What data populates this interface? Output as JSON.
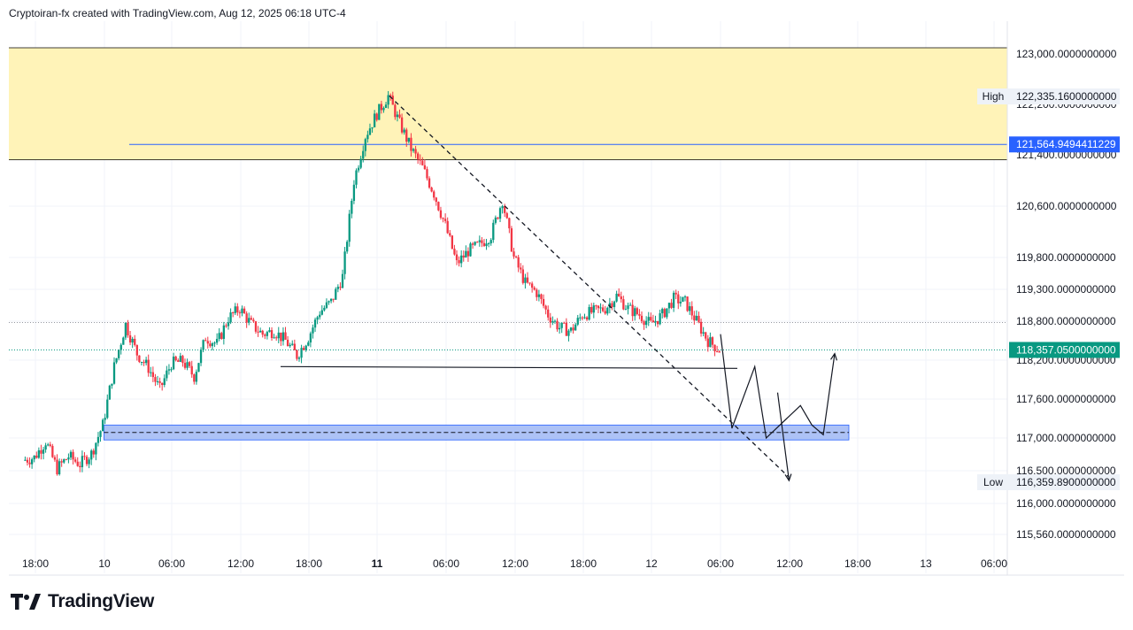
{
  "header": {
    "attribution": "Cryptoiran-fx created with TradingView.com, Aug 12, 2025 06:18 UTC-4"
  },
  "footer": {
    "logo_text": "TradingView"
  },
  "colors": {
    "up": "#089981",
    "down": "#f23645",
    "zone_yellow": "#fff3b8",
    "zone_blue": "#9fb7f5",
    "level_line": "#2962ff",
    "current_price": "#089981",
    "grid": "#f0f3fa"
  },
  "chart_data": {
    "type": "candlestick",
    "y_axis_ticks": [
      "123,000.0000000000",
      "122,200.0000000000",
      "121,400.0000000000",
      "120,600.0000000000",
      "119,800.0000000000",
      "119,300.0000000000",
      "118,800.0000000000",
      "118,200.0000000000",
      "117,600.0000000000",
      "117,000.0000000000",
      "116,500.0000000000",
      "116,000.0000000000",
      "115,560.0000000000"
    ],
    "x_axis_ticks": [
      {
        "label": "18:00",
        "bold": false
      },
      {
        "label": "10",
        "bold": false
      },
      {
        "label": "06:00",
        "bold": false
      },
      {
        "label": "12:00",
        "bold": false
      },
      {
        "label": "18:00",
        "bold": false
      },
      {
        "label": "11",
        "bold": true
      },
      {
        "label": "06:00",
        "bold": false
      },
      {
        "label": "12:00",
        "bold": false
      },
      {
        "label": "18:00",
        "bold": false
      },
      {
        "label": "12",
        "bold": false
      },
      {
        "label": "06:00",
        "bold": false
      },
      {
        "label": "12:00",
        "bold": false
      },
      {
        "label": "18:00",
        "bold": false
      },
      {
        "label": "13",
        "bold": false
      },
      {
        "label": "06:00",
        "bold": false
      }
    ],
    "price_tags": {
      "high": {
        "label": "High",
        "value": "122,335.1600000000"
      },
      "level": {
        "value": "121,564.9494411229"
      },
      "current": {
        "value": "118,357.0500000000"
      },
      "low": {
        "label": "Low",
        "value": "116,359.8900000000"
      }
    },
    "levels": {
      "high": 122335.16,
      "level": 121564.9494,
      "current": 118357.05,
      "low": 116359.89,
      "support": 118100,
      "zone_top": [
        123000,
        121350
      ],
      "zone_bottom": [
        117200,
        116970
      ],
      "dotted_top": 118780
    },
    "price_path": [
      [
        2025080917,
        116660
      ],
      [
        2025080918,
        116700
      ],
      [
        2025080919,
        116950
      ],
      [
        2025080920,
        116530
      ],
      [
        2025080921,
        116720
      ],
      [
        2025080922,
        116600
      ],
      [
        2025080923,
        116760
      ],
      [
        2025081000,
        117200
      ],
      [
        2025081001,
        118100
      ],
      [
        2025081002,
        118750
      ],
      [
        2025081003,
        118300
      ],
      [
        2025081004,
        118080
      ],
      [
        2025081005,
        117750
      ],
      [
        2025081006,
        118150
      ],
      [
        2025081007,
        118180
      ],
      [
        2025081008,
        117950
      ],
      [
        2025081009,
        118550
      ],
      [
        2025081010,
        118450
      ],
      [
        2025081011,
        118850
      ],
      [
        2025081012,
        119000
      ],
      [
        2025081013,
        118750
      ],
      [
        2025081014,
        118600
      ],
      [
        2025081015,
        118650
      ],
      [
        2025081016,
        118500
      ],
      [
        2025081017,
        118270
      ],
      [
        2025081018,
        118550
      ],
      [
        2025081019,
        118950
      ],
      [
        2025081020,
        119100
      ],
      [
        2025081021,
        119500
      ],
      [
        2025081022,
        121000
      ],
      [
        2025081023,
        121700
      ],
      [
        2025081100,
        122050
      ],
      [
        2025081101,
        122335
      ],
      [
        2025081102,
        121900
      ],
      [
        2025081103,
        121500
      ],
      [
        2025081104,
        121200
      ],
      [
        2025081105,
        120800
      ],
      [
        2025081106,
        120300
      ],
      [
        2025081107,
        119700
      ],
      [
        2025081108,
        119900
      ],
      [
        2025081109,
        120000
      ],
      [
        2025081110,
        120150
      ],
      [
        2025081111,
        120700
      ],
      [
        2025081112,
        119800
      ],
      [
        2025081113,
        119400
      ],
      [
        2025081114,
        119250
      ],
      [
        2025081115,
        118900
      ],
      [
        2025081116,
        118700
      ],
      [
        2025081117,
        118650
      ],
      [
        2025081118,
        118900
      ],
      [
        2025081119,
        118950
      ],
      [
        2025081120,
        119000
      ],
      [
        2025081121,
        119200
      ],
      [
        2025081122,
        119000
      ],
      [
        2025081123,
        118900
      ],
      [
        2025081200,
        118750
      ],
      [
        2025081201,
        118900
      ],
      [
        2025081202,
        119150
      ],
      [
        2025081203,
        119100
      ],
      [
        2025081204,
        118800
      ],
      [
        2025081205,
        118500
      ],
      [
        2025081206,
        118357
      ]
    ],
    "trendline": [
      [
        2025081101,
        122335
      ],
      [
        2025081212,
        116400
      ]
    ],
    "projection_path": [
      [
        2025081206,
        118600
      ],
      [
        2025081207,
        117150
      ],
      [
        2025081209,
        118100
      ],
      [
        2025081210,
        117000
      ],
      [
        2025081213,
        117500
      ],
      [
        2025081214,
        117200
      ],
      [
        2025081215,
        117050
      ],
      [
        2025081216,
        118300
      ]
    ],
    "projection_alt": [
      [
        2025081211,
        117700
      ],
      [
        2025081212,
        116350
      ]
    ]
  }
}
